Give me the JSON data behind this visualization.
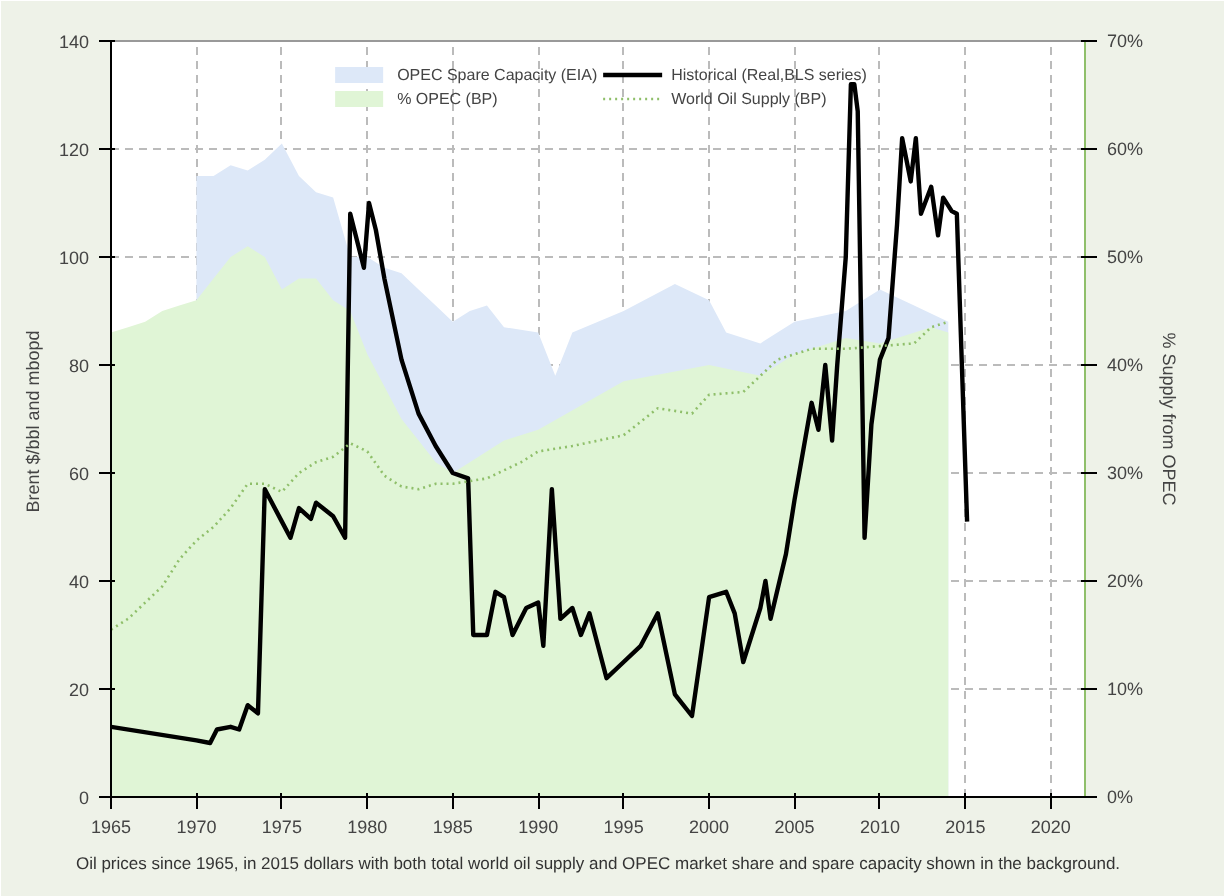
{
  "chart_data": {
    "type": "line",
    "xlabel": null,
    "ylabel": "Brent $/bbl and  mbopd",
    "y2label": "% Supply from OPEC",
    "xlim": [
      1965,
      2022
    ],
    "xticks": [
      1965,
      1970,
      1975,
      1980,
      1985,
      1990,
      1995,
      2000,
      2005,
      2010,
      2015,
      2020
    ],
    "ylim": [
      0,
      140
    ],
    "yticks": [
      0,
      20,
      40,
      60,
      80,
      100,
      120,
      140
    ],
    "y2lim": [
      0,
      70
    ],
    "y2ticks": [
      {
        "value": 0,
        "label": "0%"
      },
      {
        "value": 10,
        "label": "10%"
      },
      {
        "value": 20,
        "label": "20%"
      },
      {
        "value": 30,
        "label": "30%"
      },
      {
        "value": 40,
        "label": "40%"
      },
      {
        "value": 50,
        "label": "50%"
      },
      {
        "value": 60,
        "label": "60%"
      },
      {
        "value": 70,
        "label": "70%"
      }
    ],
    "grid": true,
    "legend": "top",
    "line_style": "solid",
    "annotations": [
      "Oil prices since 1965, in 2015 dollars with both total world oil supply and OPEC market share and spare capacity shown in the background."
    ],
    "series": [
      {
        "name": "OPEC Spare Capacity (EIA)",
        "type": "area",
        "color": "#dde8f8",
        "x": [
          1970,
          1971,
          1972,
          1973,
          1974,
          1975,
          1976,
          1977,
          1978,
          1979,
          1980,
          1981,
          1982,
          1983,
          1984,
          1985,
          1986,
          1987,
          1988,
          1990,
          1991,
          1992,
          1995,
          1998,
          2000,
          2001,
          2003,
          2005,
          2008,
          2010,
          2012,
          2014
        ],
        "values": [
          115,
          115,
          117,
          116,
          118,
          121,
          115,
          112,
          111,
          100,
          100,
          98,
          97,
          94,
          91,
          88,
          90,
          91,
          87,
          86,
          78,
          86,
          90,
          95,
          92,
          86,
          84,
          88,
          90,
          94,
          91,
          88
        ]
      },
      {
        "name": "% OPEC (BP)",
        "type": "area",
        "axis": "y2",
        "color": "#e0f5d6",
        "x": [
          1965,
          1966,
          1967,
          1968,
          1969,
          1970,
          1971,
          1972,
          1973,
          1974,
          1975,
          1976,
          1977,
          1978,
          1979,
          1980,
          1981,
          1982,
          1983,
          1984,
          1985,
          1986,
          1988,
          1990,
          1995,
          2000,
          2003,
          2005,
          2008,
          2010,
          2013,
          2014
        ],
        "values": [
          43,
          43.5,
          44,
          45,
          45.5,
          46,
          48,
          50,
          51,
          50,
          47,
          48,
          48,
          46,
          45,
          41,
          38,
          35,
          33,
          31,
          30,
          31,
          33,
          34,
          38.5,
          40,
          39,
          41,
          42.5,
          42,
          43.5,
          43
        ]
      },
      {
        "name": "Historical (Real,BLS series)",
        "color": "#000000",
        "x": [
          1965,
          1970,
          1970.8,
          1971.2,
          1972,
          1972.5,
          1973,
          1973.6,
          1974,
          1975,
          1975.5,
          1976,
          1976.7,
          1977,
          1978,
          1978.7,
          1979,
          1979.8,
          1980.1,
          1980.5,
          1981,
          1982,
          1983,
          1984,
          1985,
          1985.9,
          1986.2,
          1987,
          1987.5,
          1988,
          1988.5,
          1989.3,
          1990,
          1990.3,
          1990.8,
          1991.3,
          1992,
          1992.5,
          1993,
          1994,
          1995,
          1996,
          1997,
          1998,
          1999,
          2000,
          2001,
          2001.5,
          2002,
          2003,
          2003.3,
          2003.6,
          2004.5,
          2005,
          2006,
          2006.4,
          2006.8,
          2007.2,
          2007.5,
          2008,
          2008.3,
          2008.5,
          2008.7,
          2009.1,
          2009.5,
          2010,
          2010.5,
          2011,
          2011.3,
          2011.8,
          2012.1,
          2012.4,
          2013,
          2013.4,
          2013.7,
          2014.2,
          2014.5,
          2015.1
        ],
        "values": [
          13,
          10.5,
          10,
          12.5,
          13,
          12.5,
          17,
          15.5,
          57,
          51,
          48,
          53.5,
          51.5,
          54.5,
          52,
          48,
          108,
          98,
          110,
          105,
          96,
          81,
          71,
          65,
          60,
          59,
          30,
          30,
          38,
          37,
          30,
          35,
          36,
          28,
          57,
          33,
          35,
          30,
          34,
          22,
          25,
          28,
          34,
          19,
          15,
          37,
          38,
          34,
          25,
          35,
          40,
          33,
          45,
          55,
          73,
          68,
          80,
          66,
          80,
          100,
          132,
          132,
          127,
          48,
          69,
          81,
          85,
          106,
          122,
          114,
          122,
          108,
          113,
          104,
          111,
          108.5,
          108,
          51
        ]
      },
      {
        "name": "World Oil Supply (BP)",
        "line_style": "dotted",
        "color": "#8fbf6a",
        "x": [
          1965,
          1966,
          1967,
          1968,
          1969,
          1970,
          1971,
          1972,
          1973,
          1974,
          1975,
          1976,
          1977,
          1978,
          1979,
          1980,
          1981,
          1982,
          1983,
          1984,
          1985,
          1987,
          1989,
          1990,
          1992,
          1995,
          1997,
          1999,
          2000,
          2002,
          2004,
          2006,
          2008,
          2010,
          2012,
          2013,
          2014
        ],
        "values": [
          31,
          33,
          36,
          39,
          44,
          47.5,
          50,
          53.5,
          58,
          58,
          56.5,
          60,
          62,
          63,
          65.5,
          64,
          59.5,
          57.5,
          57,
          58,
          58,
          59,
          62,
          64,
          65,
          67,
          72,
          71,
          74.5,
          75,
          81,
          83,
          83,
          83.5,
          84,
          87,
          88
        ]
      }
    ]
  }
}
